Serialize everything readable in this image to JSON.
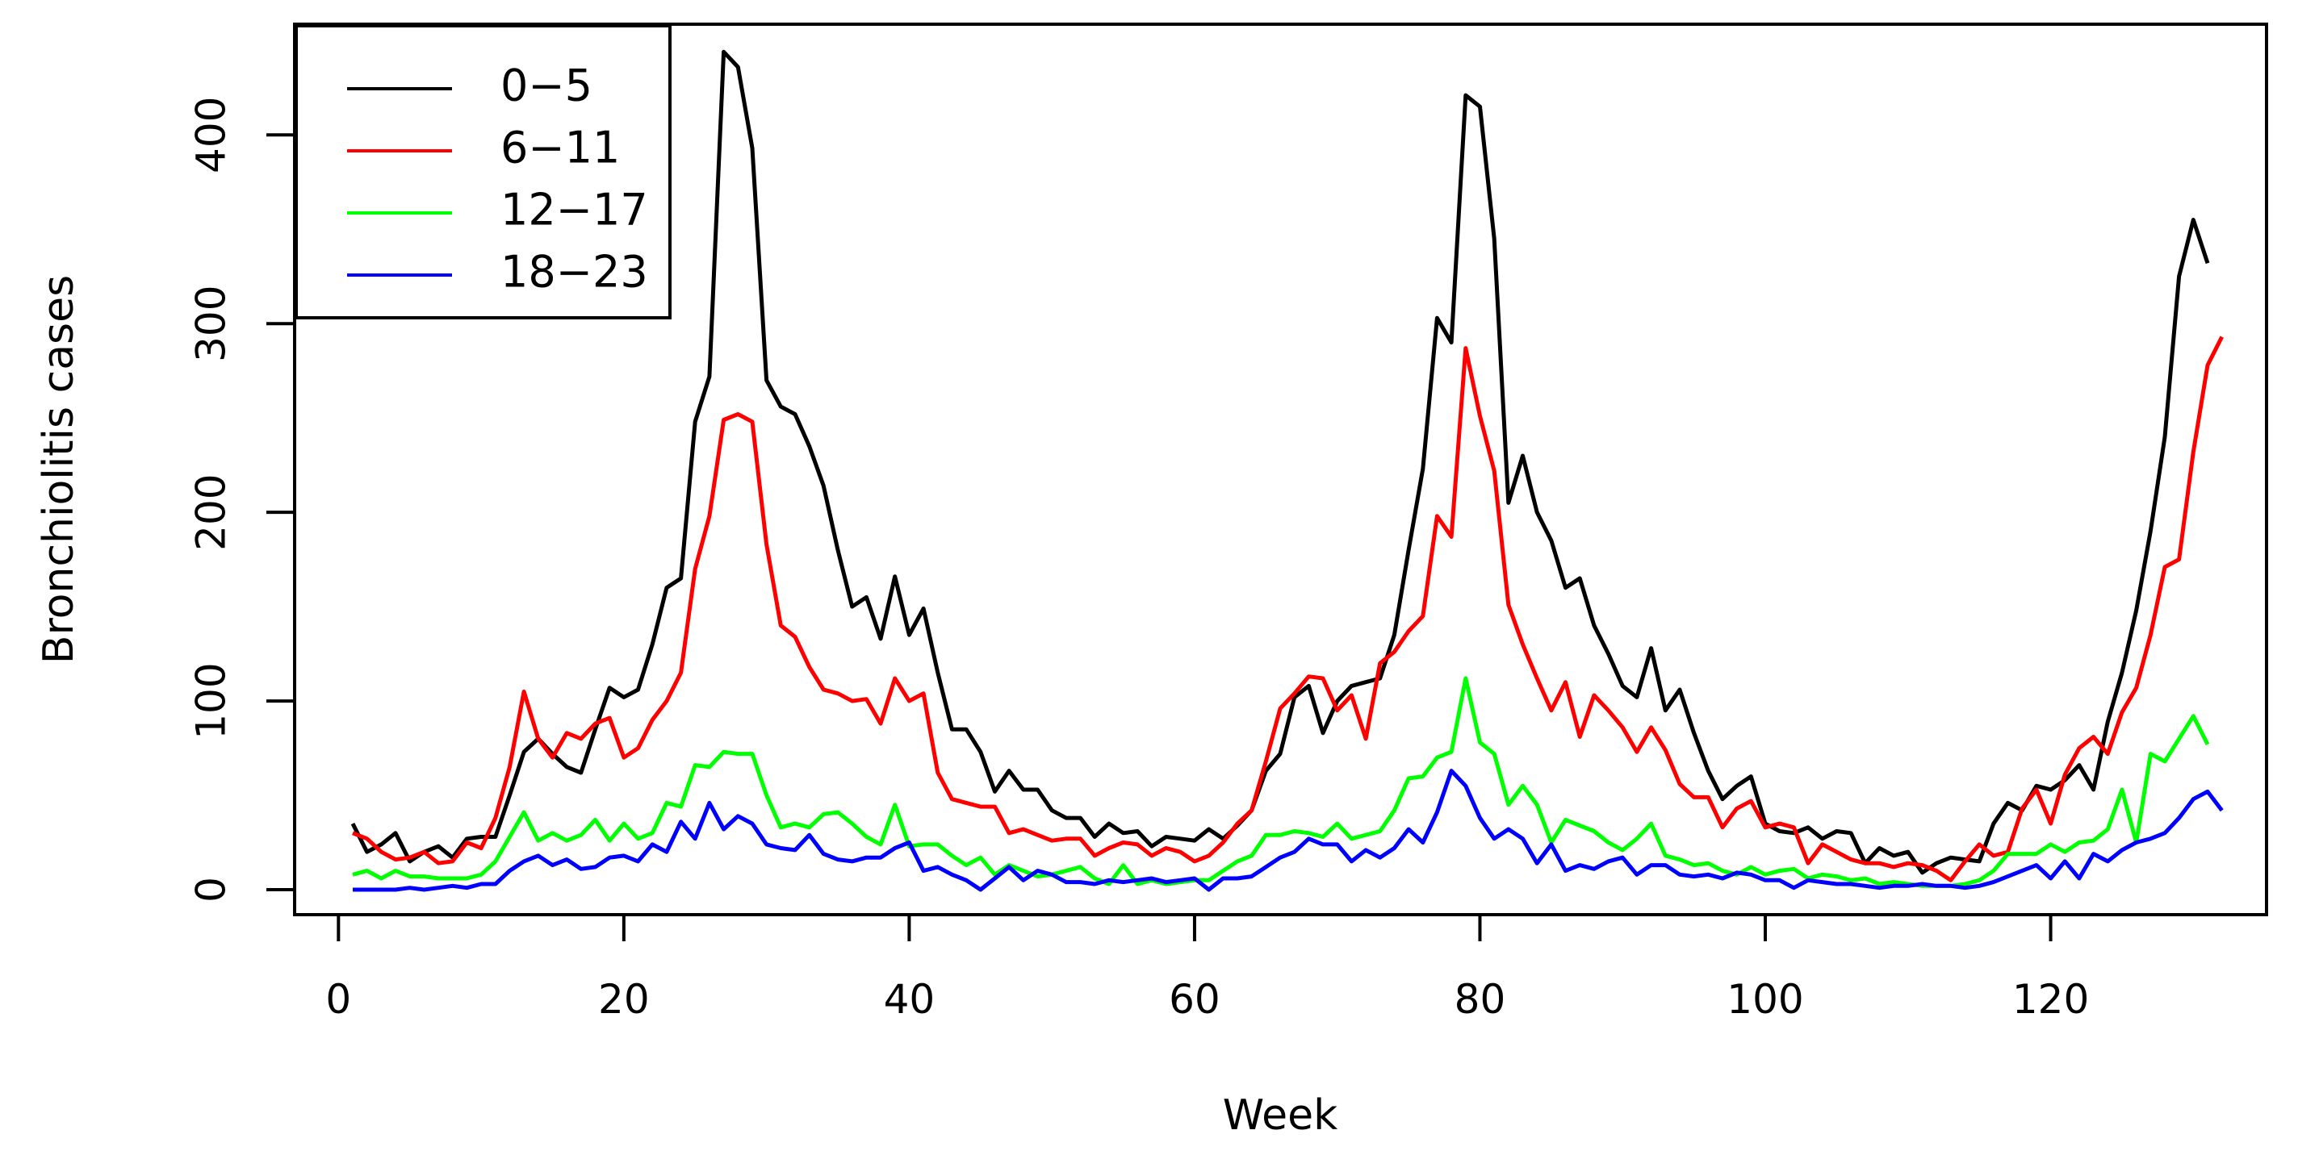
{
  "chart_data": {
    "type": "line",
    "title": "",
    "xlabel": "Week",
    "ylabel": "Bronchiolitis cases",
    "xlim": [
      1,
      131
    ],
    "ylim": [
      0,
      445
    ],
    "x_ticks": [
      0,
      20,
      40,
      60,
      80,
      100,
      120
    ],
    "y_ticks": [
      0,
      100,
      200,
      300,
      400
    ],
    "legend_position": "top-left",
    "grid": false,
    "series": [
      {
        "name": "0−5",
        "color": "#000000",
        "values": [
          35,
          20,
          24,
          30,
          15,
          20,
          23,
          17,
          27,
          28,
          28,
          50,
          73,
          80,
          72,
          65,
          62,
          85,
          107,
          102,
          106,
          130,
          160,
          165,
          248,
          272,
          444,
          436,
          393,
          270,
          256,
          252,
          235,
          214,
          180,
          150,
          155,
          133,
          166,
          135,
          149,
          115,
          85,
          85,
          73,
          52,
          63,
          53,
          53,
          42,
          38,
          38,
          28,
          35,
          30,
          31,
          23,
          28,
          27,
          26,
          32,
          27,
          34,
          42,
          63,
          72,
          102,
          108,
          83,
          100,
          108,
          110,
          112,
          135,
          180,
          223,
          303,
          290,
          421,
          415,
          345,
          205,
          230,
          200,
          185,
          160,
          165,
          140,
          125,
          108,
          102,
          128,
          95,
          106,
          83,
          63,
          48,
          55,
          60,
          35,
          31,
          30,
          33,
          27,
          31,
          30,
          14,
          22,
          18,
          20,
          9,
          14,
          17,
          16,
          15,
          35,
          46,
          42,
          55,
          53,
          58,
          66,
          53,
          89,
          115,
          148,
          190,
          240,
          325,
          355,
          332
        ]
      },
      {
        "name": "6−11",
        "color": "#ff0000",
        "values": [
          30,
          27,
          20,
          16,
          17,
          20,
          14,
          15,
          25,
          22,
          38,
          65,
          105,
          80,
          70,
          83,
          80,
          88,
          91,
          70,
          75,
          90,
          100,
          115,
          170,
          198,
          249,
          252,
          248,
          183,
          140,
          134,
          118,
          106,
          104,
          100,
          101,
          88,
          112,
          100,
          104,
          62,
          48,
          46,
          44,
          44,
          30,
          32,
          29,
          26,
          27,
          27,
          18,
          22,
          25,
          24,
          18,
          22,
          20,
          15,
          18,
          25,
          35,
          42,
          68,
          96,
          104,
          113,
          112,
          95,
          103,
          80,
          120,
          126,
          137,
          145,
          198,
          187,
          287,
          251,
          222,
          151,
          130,
          112,
          95,
          110,
          81,
          103,
          95,
          86,
          73,
          86,
          74,
          56,
          49,
          49,
          33,
          43,
          47,
          33,
          35,
          33,
          14,
          24,
          20,
          16,
          14,
          14,
          12,
          14,
          13,
          10,
          5,
          15,
          24,
          18,
          20,
          43,
          53,
          35,
          61,
          75,
          81,
          72,
          94,
          107,
          135,
          171,
          175,
          232,
          278,
          293
        ]
      },
      {
        "name": "12−17",
        "color": "#00ff00",
        "values": [
          8,
          10,
          6,
          10,
          7,
          7,
          6,
          6,
          6,
          8,
          15,
          28,
          41,
          26,
          30,
          26,
          29,
          37,
          26,
          35,
          27,
          30,
          46,
          44,
          66,
          65,
          73,
          72,
          72,
          50,
          33,
          35,
          33,
          40,
          41,
          35,
          28,
          24,
          45,
          23,
          24,
          24,
          18,
          13,
          17,
          8,
          13,
          10,
          7,
          8,
          10,
          12,
          6,
          3,
          13,
          3,
          5,
          3,
          4,
          5,
          5,
          10,
          15,
          18,
          29,
          29,
          31,
          30,
          28,
          35,
          27,
          29,
          31,
          42,
          59,
          60,
          70,
          73,
          112,
          78,
          72,
          45,
          55,
          45,
          25,
          37,
          34,
          31,
          25,
          21,
          27,
          35,
          18,
          16,
          13,
          14,
          10,
          8,
          12,
          8,
          10,
          11,
          6,
          8,
          7,
          5,
          6,
          3,
          4,
          3,
          2,
          2,
          2,
          3,
          5,
          10,
          19,
          19,
          19,
          24,
          20,
          25,
          26,
          32,
          53,
          25,
          72,
          68,
          80,
          92,
          77
        ]
      },
      {
        "name": "18−23",
        "color": "#0000ff",
        "values": [
          0,
          0,
          0,
          0,
          1,
          0,
          1,
          2,
          1,
          3,
          3,
          10,
          15,
          18,
          13,
          16,
          11,
          12,
          17,
          18,
          15,
          24,
          20,
          36,
          27,
          46,
          32,
          39,
          35,
          24,
          22,
          21,
          29,
          19,
          16,
          15,
          17,
          17,
          22,
          25,
          10,
          12,
          8,
          5,
          0,
          6,
          12,
          5,
          10,
          8,
          4,
          4,
          3,
          5,
          4,
          5,
          6,
          4,
          5,
          6,
          0,
          6,
          6,
          7,
          12,
          17,
          20,
          27,
          24,
          24,
          15,
          21,
          17,
          22,
          32,
          25,
          41,
          63,
          55,
          38,
          27,
          32,
          27,
          14,
          24,
          10,
          13,
          11,
          15,
          17,
          8,
          13,
          13,
          8,
          7,
          8,
          6,
          9,
          8,
          5,
          5,
          1,
          5,
          4,
          3,
          3,
          2,
          1,
          2,
          2,
          3,
          2,
          2,
          1,
          2,
          4,
          7,
          10,
          13,
          6,
          15,
          6,
          19,
          15,
          21,
          25,
          27,
          30,
          38,
          48,
          52,
          42
        ]
      }
    ]
  }
}
